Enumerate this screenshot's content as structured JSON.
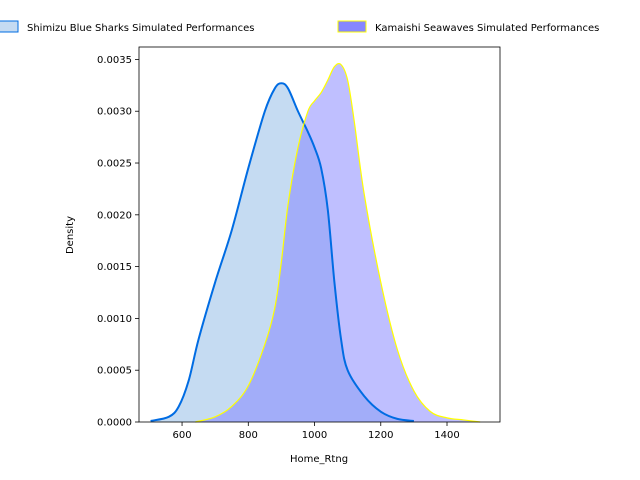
{
  "chart_data": {
    "type": "area",
    "title": "",
    "xlabel": "Home_Rtng",
    "ylabel": "Density",
    "xlim": [
      470,
      1560
    ],
    "ylim": [
      0,
      0.00362
    ],
    "xticks": [
      600,
      800,
      1000,
      1200,
      1400
    ],
    "yticks": [
      0.0,
      0.0005,
      0.001,
      0.0015,
      0.002,
      0.0025,
      0.003,
      0.0035
    ],
    "xtick_labels": [
      "600",
      "800",
      "1000",
      "1200",
      "1400"
    ],
    "ytick_labels": [
      "0.0000",
      "0.0005",
      "0.0010",
      "0.0015",
      "0.0020",
      "0.0025",
      "0.0030",
      "0.0035"
    ],
    "grid": false,
    "legend_placement": "top-center, outside plot",
    "series": [
      {
        "name": "Shimizu Blue Sharks Simulated Performances",
        "line_color": "#006ce3",
        "fill_color": "#c5dbf2",
        "x": [
          505,
          560,
          590,
          620,
          650,
          700,
          750,
          800,
          850,
          880,
          900,
          920,
          950,
          980,
          1000,
          1020,
          1040,
          1060,
          1080,
          1100,
          1150,
          1200,
          1250,
          1300
        ],
        "y": [
          1e-05,
          5e-05,
          0.00015,
          0.0004,
          0.0008,
          0.00135,
          0.00185,
          0.00245,
          0.003,
          0.00322,
          0.00327,
          0.00322,
          0.003,
          0.0028,
          0.00265,
          0.00245,
          0.00205,
          0.00135,
          0.0008,
          0.0005,
          0.00025,
          0.0001,
          3e-05,
          1e-05
        ]
      },
      {
        "name": "Kamaishi Seawaves Simulated Performances",
        "line_color": "#ffff00",
        "fill_color": "#8080ff",
        "x": [
          640,
          700,
          750,
          800,
          850,
          880,
          900,
          920,
          950,
          980,
          1000,
          1020,
          1040,
          1060,
          1080,
          1100,
          1120,
          1150,
          1200,
          1250,
          1300,
          1350,
          1400,
          1450,
          1500
        ],
        "y": [
          0.0,
          5e-05,
          0.00015,
          0.00035,
          0.00075,
          0.0011,
          0.00155,
          0.0021,
          0.00265,
          0.003,
          0.0031,
          0.00318,
          0.0033,
          0.00343,
          0.00345,
          0.0033,
          0.0029,
          0.0022,
          0.00135,
          0.0007,
          0.0003,
          0.0001,
          4e-05,
          2e-05,
          0.0
        ]
      }
    ]
  }
}
